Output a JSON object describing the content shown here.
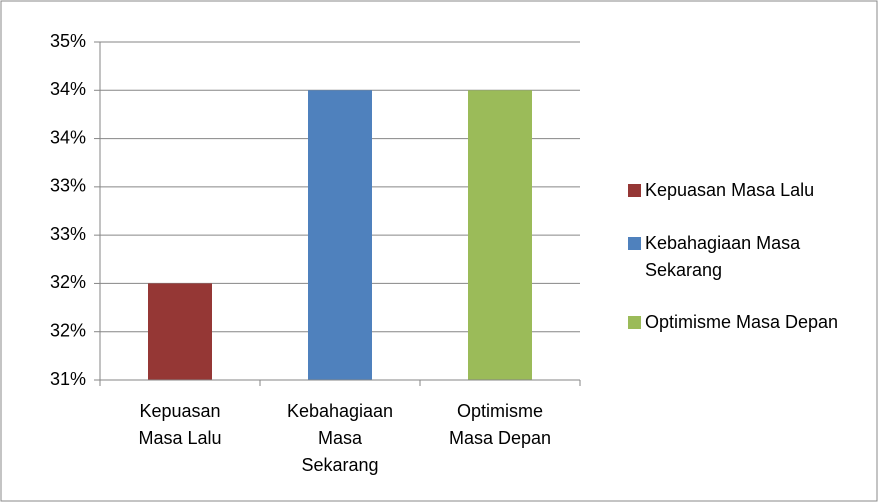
{
  "chart_data": {
    "type": "bar",
    "categories": [
      "Kepuasan Masa Lalu",
      "Kebahagiaan Masa Sekarang",
      "Optimisme Masa Depan"
    ],
    "values": [
      32,
      34,
      34
    ],
    "colors": [
      "#953735",
      "#4f81bd",
      "#9bbb59"
    ],
    "ylim": [
      31,
      34.5
    ],
    "yticks": [
      {
        "value": 31,
        "label": "31%"
      },
      {
        "value": 31.5,
        "label": "32%"
      },
      {
        "value": 32,
        "label": "32%"
      },
      {
        "value": 32.5,
        "label": "33%"
      },
      {
        "value": 33,
        "label": "33%"
      },
      {
        "value": 33.5,
        "label": "34%"
      },
      {
        "value": 34,
        "label": "34%"
      },
      {
        "value": 34.5,
        "label": "35%"
      }
    ],
    "grid": true,
    "legend": "right"
  }
}
